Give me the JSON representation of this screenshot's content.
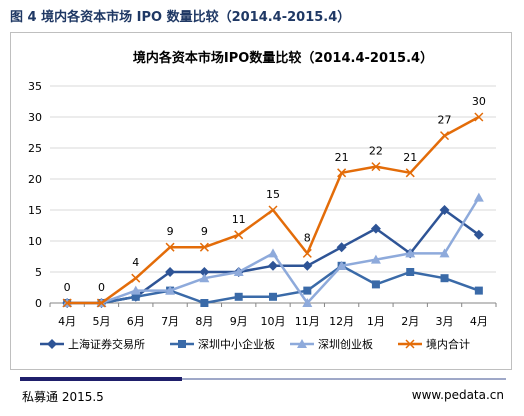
{
  "figure_caption": "图 4  境内各资本市场 IPO 数量比较（2014.4-2015.4）",
  "footer": {
    "left": "私募通 2015.5",
    "right": "www.pedata.cn"
  },
  "chart_data": {
    "type": "line",
    "title": "境内各资本市场IPO数量比较（2014.4-2015.4）",
    "categories": [
      "4月",
      "5月",
      "6月",
      "7月",
      "8月",
      "9月",
      "10月",
      "11月",
      "12月",
      "1月",
      "2月",
      "3月",
      "4月"
    ],
    "ylim": [
      0,
      35
    ],
    "yticks": [
      0,
      5,
      10,
      15,
      20,
      25,
      30,
      35
    ],
    "grid": true,
    "legend_position": "bottom",
    "series": [
      {
        "name": "上海证券交易所",
        "color": "#2e5496",
        "marker": "diamond",
        "values": [
          0,
          0,
          1,
          5,
          5,
          5,
          6,
          6,
          9,
          12,
          8,
          15,
          11
        ]
      },
      {
        "name": "深圳中小企业板",
        "color": "#3a6aa8",
        "marker": "square",
        "values": [
          0,
          0,
          1,
          2,
          0,
          1,
          1,
          2,
          6,
          3,
          5,
          4,
          2
        ]
      },
      {
        "name": "深圳创业板",
        "color": "#8eaadb",
        "marker": "triangle",
        "values": [
          0,
          0,
          2,
          2,
          4,
          5,
          8,
          0,
          6,
          7,
          8,
          8,
          17
        ]
      },
      {
        "name": "境内合计",
        "color": "#e36c09",
        "marker": "x",
        "values": [
          0,
          0,
          4,
          9,
          9,
          11,
          15,
          8,
          21,
          22,
          21,
          27,
          30
        ],
        "labeled": true
      }
    ]
  }
}
